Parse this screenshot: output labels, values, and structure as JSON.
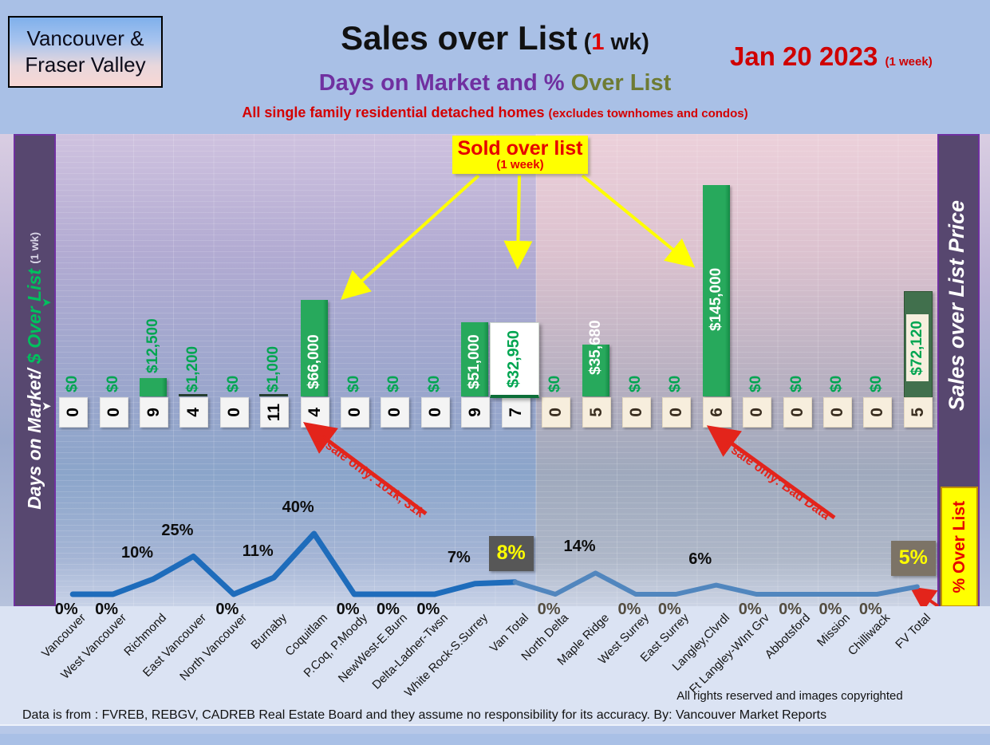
{
  "header": {
    "region_line1": "Vancouver &",
    "region_line2": "Fraser Valley",
    "title": "Sales over List",
    "title_paren_open": " (",
    "title_one": "1",
    "title_paren_close": " wk)",
    "date": "Jan 20  2023",
    "date_note": "(1 week)",
    "subtitle_purple": "Days on Market and % ",
    "subtitle_olive": "Over List",
    "tagline_main": "All single family residential detached homes ",
    "tagline_small": "(excludes townhomes and condos)"
  },
  "left_axis": {
    "label_white": "Days on Market/ ",
    "label_green": "$ Over List ",
    "label_small": "(1 wk)"
  },
  "right_axis": {
    "label": "Sales over List Price",
    "percent_box": "% Over List"
  },
  "callout": {
    "line1": "Sold over list",
    "line2": "(1 week)"
  },
  "annotations": [
    {
      "text": "2 sale only: 101k, 31k"
    },
    {
      "text": "1 sale only: Bad Data"
    }
  ],
  "footer": {
    "rights": "All rights reserved and  images copyrighted",
    "source": "Data is from : FVREB, REBGV, CADREB Real Estate Board and they assume no responsibility for its accuracy. By: Vancouver Market Reports"
  },
  "colors": {
    "bar_green": "#27a95c",
    "label_green": "#00a551",
    "line_vancouver": "#1e6cbb",
    "line_fraser": "#5186be",
    "rail_purple": "#57476f",
    "callout_yellow": "#ffff00",
    "annotation_red": "#e3241b",
    "total_box_van": "#575757",
    "total_box_fv": "#7c7366",
    "header_red": "#cf0000",
    "subtitle_purple": "#7030a0"
  },
  "chart_data": {
    "type": "combo bar+line",
    "title": "Sales over List (1 wk) — Days on Market and % Over List",
    "grid": true,
    "legend": "none",
    "ylim_dollar": [
      0,
      160000
    ],
    "ylim_percent": [
      0,
      45
    ],
    "groups": [
      {
        "name": "Vancouver",
        "from": 0,
        "to": 11
      },
      {
        "name": "Fraser Valley",
        "from": 12,
        "to": 21
      }
    ],
    "categories": [
      "Vancouver",
      "West Vancouver",
      "Richmond",
      "East Vancouver",
      "North Vancouver",
      "Burnaby",
      "Coquitlam",
      "P.Coq, P.Moody",
      "NewWest-E.Burn",
      "Delta-Ladner-Twsn",
      "White Rock-S.Surrey",
      "Van Total",
      "North Delta",
      "Maple Ridge",
      "West Surrey",
      "East Surrey",
      "Langley,Clvrdl",
      "Ft Langley-WInt Grv",
      "Abbotsford",
      "Mission",
      "Chilliwack",
      "FV Total"
    ],
    "series": [
      {
        "name": "$ Over List (bars)",
        "values": [
          0,
          0,
          12500,
          1200,
          0,
          1000,
          66000,
          0,
          0,
          0,
          51000,
          32950,
          0,
          35680,
          0,
          0,
          145000,
          0,
          0,
          0,
          0,
          72120
        ]
      },
      {
        "name": "Days on Market (boxes)",
        "values": [
          0,
          0,
          9,
          4,
          0,
          11,
          4,
          0,
          0,
          0,
          9,
          7,
          0,
          5,
          0,
          0,
          6,
          0,
          0,
          0,
          0,
          5
        ]
      },
      {
        "name": "% Over List (line)",
        "values": [
          0,
          0,
          10,
          25,
          0,
          11,
          40,
          0,
          0,
          0,
          7,
          8,
          0,
          14,
          0,
          0,
          6,
          0,
          0,
          0,
          0,
          5
        ]
      }
    ],
    "points": [
      {
        "name": "Vancouver",
        "group": "van",
        "total": false,
        "dollar": 0,
        "dollar_label": "$0",
        "days": "0",
        "pct": 0,
        "pct_label": "0%"
      },
      {
        "name": "West Vancouver",
        "group": "van",
        "total": false,
        "dollar": 0,
        "dollar_label": "$0",
        "days": "0",
        "pct": 0,
        "pct_label": "0%"
      },
      {
        "name": "Richmond",
        "group": "van",
        "total": false,
        "dollar": 12500,
        "dollar_label": "$12,500",
        "days": "9",
        "pct": 10,
        "pct_label": "10%"
      },
      {
        "name": "East Vancouver",
        "group": "van",
        "total": false,
        "dollar": 1200,
        "dollar_label": "$1,200",
        "days": "4",
        "pct": 25,
        "pct_label": "25%"
      },
      {
        "name": "North Vancouver",
        "group": "van",
        "total": false,
        "dollar": 0,
        "dollar_label": "$0",
        "days": "0",
        "pct": 0,
        "pct_label": "0%"
      },
      {
        "name": "Burnaby",
        "group": "van",
        "total": false,
        "dollar": 1000,
        "dollar_label": "$1,000",
        "days": "11",
        "pct": 11,
        "pct_label": "11%"
      },
      {
        "name": "Coquitlam",
        "group": "van",
        "total": false,
        "dollar": 66000,
        "dollar_label": "$66,000",
        "days": "4",
        "pct": 40,
        "pct_label": "40%"
      },
      {
        "name": "P.Coq, P.Moody",
        "group": "van",
        "total": false,
        "dollar": 0,
        "dollar_label": "$0",
        "days": "0",
        "pct": 0,
        "pct_label": "0%"
      },
      {
        "name": "NewWest-E.Burn",
        "group": "van",
        "total": false,
        "dollar": 0,
        "dollar_label": "$0",
        "days": "0",
        "pct": 0,
        "pct_label": "0%"
      },
      {
        "name": "Delta-Ladner-Twsn",
        "group": "van",
        "total": false,
        "dollar": 0,
        "dollar_label": "$0",
        "days": "0",
        "pct": 0,
        "pct_label": "0%"
      },
      {
        "name": "White Rock-S.Surrey",
        "group": "van",
        "total": false,
        "dollar": 51000,
        "dollar_label": "$51,000",
        "days": "9",
        "pct": 7,
        "pct_label": "7%"
      },
      {
        "name": "Van Total",
        "group": "van",
        "total": true,
        "dollar": 32950,
        "dollar_label": "$32,950",
        "days": "7",
        "pct": 8,
        "pct_label": "8%"
      },
      {
        "name": "North Delta",
        "group": "fv",
        "total": false,
        "dollar": 0,
        "dollar_label": "$0",
        "days": "0",
        "pct": 0,
        "pct_label": "0%"
      },
      {
        "name": "Maple Ridge",
        "group": "fv",
        "total": false,
        "dollar": 35680,
        "dollar_label": "$35,680",
        "days": "5",
        "pct": 14,
        "pct_label": "14%"
      },
      {
        "name": "West Surrey",
        "group": "fv",
        "total": false,
        "dollar": 0,
        "dollar_label": "$0",
        "days": "0",
        "pct": 0,
        "pct_label": "0%"
      },
      {
        "name": "East Surrey",
        "group": "fv",
        "total": false,
        "dollar": 0,
        "dollar_label": "$0",
        "days": "0",
        "pct": 0,
        "pct_label": "0%"
      },
      {
        "name": "Langley,Clvrdl",
        "group": "fv",
        "total": false,
        "dollar": 145000,
        "dollar_label": "$145,000",
        "days": "6",
        "pct": 6,
        "pct_label": "6%"
      },
      {
        "name": "Ft Langley-WInt Grv",
        "group": "fv",
        "total": false,
        "dollar": 0,
        "dollar_label": "$0",
        "days": "0",
        "pct": 0,
        "pct_label": "0%"
      },
      {
        "name": "Abbotsford",
        "group": "fv",
        "total": false,
        "dollar": 0,
        "dollar_label": "$0",
        "days": "0",
        "pct": 0,
        "pct_label": "0%"
      },
      {
        "name": "Mission",
        "group": "fv",
        "total": false,
        "dollar": 0,
        "dollar_label": "$0",
        "days": "0",
        "pct": 0,
        "pct_label": "0%"
      },
      {
        "name": "Chilliwack",
        "group": "fv",
        "total": false,
        "dollar": 0,
        "dollar_label": "$0",
        "days": "0",
        "pct": 0,
        "pct_label": "0%"
      },
      {
        "name": "FV Total",
        "group": "fv",
        "total": true,
        "dollar": 72120,
        "dollar_label": "$72,120",
        "days": "5",
        "pct": 5,
        "pct_label": "5%"
      }
    ]
  }
}
